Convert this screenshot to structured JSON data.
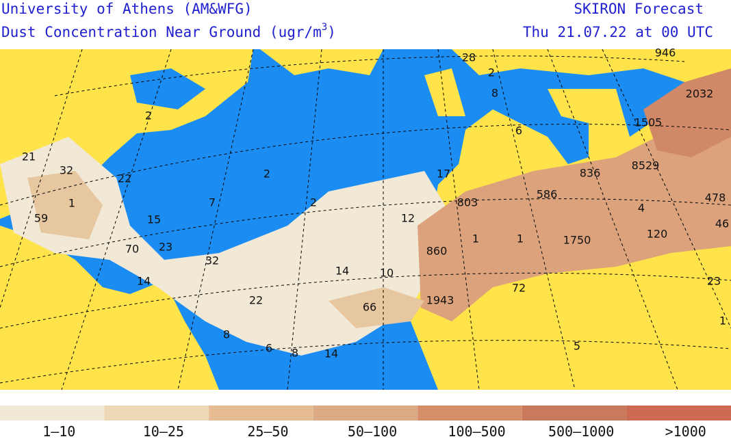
{
  "header": {
    "left_title": "University of Athens (AM&WFG)",
    "left_subtitle": [
      "Dust Concentration Near Ground (ugr/m",
      "3",
      ")"
    ],
    "right_title": "SKIRON Forecast",
    "right_subtitle": "Thu 21.07.22 at 00 UTC"
  },
  "map": {
    "labels": [
      21,
      32,
      22,
      59,
      1,
      15,
      7,
      2,
      2,
      70,
      23,
      32,
      14,
      22,
      14,
      10,
      12,
      66,
      8,
      6,
      8,
      14,
      860,
      1943,
      803,
      1,
      1,
      586,
      1750,
      836,
      8529,
      4,
      120,
      1505,
      2032,
      946,
      478,
      46,
      72,
      17,
      8,
      6,
      2,
      23,
      1,
      5,
      2,
      28
    ]
  },
  "legend": {
    "items": [
      {
        "label": "1–10",
        "color": "#f2e8d6"
      },
      {
        "label": "10–25",
        "color": "#efd8b6"
      },
      {
        "label": "25–50",
        "color": "#e6bd92"
      },
      {
        "label": "50–100",
        "color": "#dcaa84"
      },
      {
        "label": "100–500",
        "color": "#d58f68"
      },
      {
        "label": "500–1000",
        "color": "#c97a5c"
      },
      {
        "label": ">1000",
        "color": "#cd6a52"
      }
    ]
  }
}
